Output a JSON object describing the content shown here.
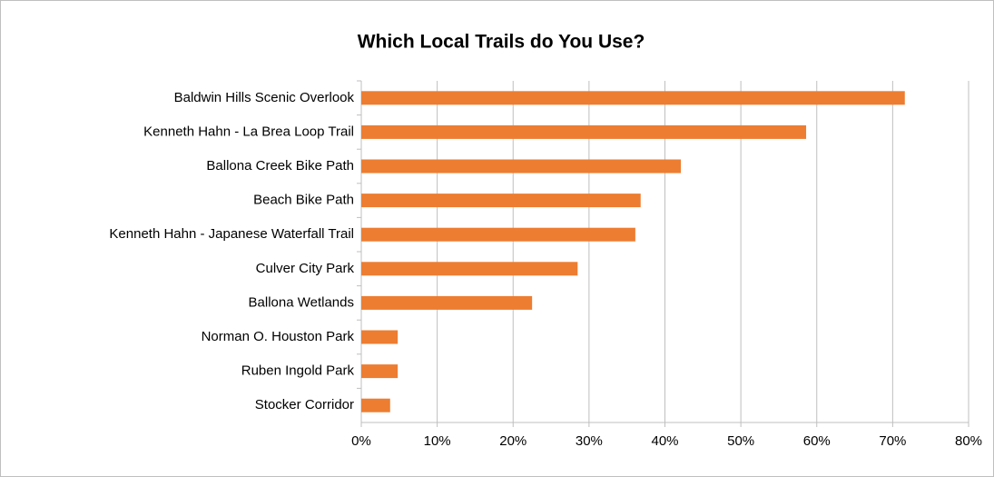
{
  "chart_data": {
    "type": "bar",
    "orientation": "horizontal",
    "title": "Which Local Trails do You Use?",
    "categories": [
      "Baldwin Hills Scenic Overlook",
      "Kenneth Hahn  - La Brea Loop Trail",
      "Ballona Creek Bike Path",
      "Beach Bike Path",
      "Kenneth Hahn  - Japanese Waterfall Trail",
      "Culver City Park",
      "Ballona Wetlands",
      "Norman O. Houston Park",
      "Ruben Ingold Park",
      "Stocker Corridor"
    ],
    "values": [
      71.6,
      58.6,
      42.1,
      36.8,
      36.1,
      28.5,
      22.5,
      4.8,
      4.8,
      3.8
    ],
    "color": "#ed7d31",
    "xlim": [
      0,
      80
    ],
    "xticks": [
      {
        "value": 0,
        "label": "0%"
      },
      {
        "value": 10,
        "label": "10%"
      },
      {
        "value": 20,
        "label": "20%"
      },
      {
        "value": 30,
        "label": "30%"
      },
      {
        "value": 40,
        "label": "40%"
      },
      {
        "value": 50,
        "label": "50%"
      },
      {
        "value": 60,
        "label": "60%"
      },
      {
        "value": 70,
        "label": "70%"
      },
      {
        "value": 80,
        "label": "80%"
      }
    ],
    "grid": true
  }
}
